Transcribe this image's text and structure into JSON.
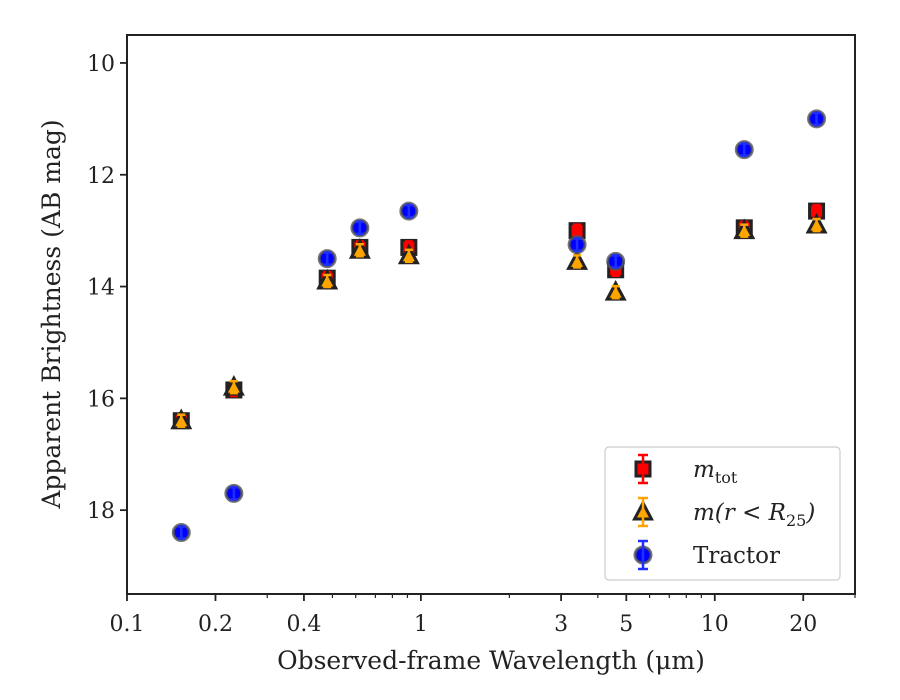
{
  "chart_data": {
    "type": "scatter",
    "xlabel": "Observed-frame Wavelength (μm)",
    "ylabel": "Apparent Brightness (AB mag)",
    "xscale": "log",
    "xlim": [
      0.1,
      30
    ],
    "ylim": [
      19.5,
      9.5
    ],
    "y_inverted": true,
    "x_ticks": [
      {
        "value": 0.1,
        "label": "0.1"
      },
      {
        "value": 0.2,
        "label": "0.2"
      },
      {
        "value": 0.4,
        "label": "0.4"
      },
      {
        "value": 1,
        "label": "1"
      },
      {
        "value": 3,
        "label": "3"
      },
      {
        "value": 5,
        "label": "5"
      },
      {
        "value": 10,
        "label": "10"
      },
      {
        "value": 20,
        "label": "20"
      }
    ],
    "y_ticks": [
      {
        "value": 10,
        "label": "10"
      },
      {
        "value": 12,
        "label": "12"
      },
      {
        "value": 14,
        "label": "14"
      },
      {
        "value": 16,
        "label": "16"
      },
      {
        "value": 18,
        "label": "18"
      }
    ],
    "grid": false,
    "legend": {
      "position": "lower-right",
      "entries": [
        {
          "series": "m_tot",
          "main": "m",
          "sub": "tot",
          "tail": ""
        },
        {
          "series": "m_r25",
          "main": "m(r < R",
          "sub": "25",
          "tail": ")"
        },
        {
          "series": "tractor",
          "main": "Tractor",
          "sub": "",
          "tail": ""
        }
      ]
    },
    "series": [
      {
        "name": "m_tot",
        "marker": "square",
        "color": "#ff0000",
        "errcolor": "#ff0000",
        "edgecolor": "#222222",
        "x": [
          0.153,
          0.231,
          0.48,
          0.62,
          0.91,
          3.4,
          4.6,
          12.6,
          22.2
        ],
        "y": [
          16.4,
          15.85,
          13.85,
          13.3,
          13.3,
          13.0,
          13.7,
          12.95,
          12.65
        ]
      },
      {
        "name": "m_r25",
        "marker": "triangle",
        "color": "#ffa500",
        "errcolor": "#ffa500",
        "edgecolor": "#222222",
        "x": [
          0.153,
          0.231,
          0.48,
          0.62,
          0.91,
          3.4,
          4.6,
          12.6,
          22.2
        ],
        "y": [
          16.4,
          15.8,
          13.9,
          13.35,
          13.45,
          13.55,
          14.1,
          13.0,
          12.9
        ]
      },
      {
        "name": "tractor",
        "marker": "circle",
        "color": "#0000ff",
        "errcolor": "#1f2fff",
        "edgecolor": "#555555",
        "x": [
          0.153,
          0.231,
          0.48,
          0.62,
          0.91,
          3.4,
          4.6,
          12.6,
          22.2
        ],
        "y": [
          18.4,
          17.7,
          13.5,
          12.95,
          12.65,
          13.25,
          13.55,
          11.55,
          11.0
        ]
      }
    ]
  }
}
